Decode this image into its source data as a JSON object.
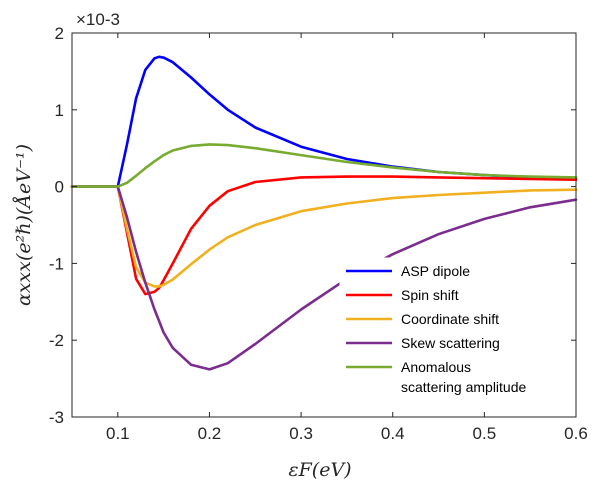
{
  "chart_data": {
    "type": "line",
    "xlabel": "εF(eV)",
    "ylabel": "αxxx(e²ℏ)(ÅeV⁻¹)",
    "y_exponent": "×10-3",
    "xlim": [
      0.05,
      0.6
    ],
    "ylim": [
      -3,
      2
    ],
    "xticks": [
      "0.1",
      "0.2",
      "0.3",
      "0.4",
      "0.5",
      "0.6"
    ],
    "xtick_values": [
      0.1,
      0.2,
      0.3,
      0.4,
      0.5,
      0.6
    ],
    "yticks": [
      "-3",
      "-2",
      "-1",
      "0",
      "1",
      "2"
    ],
    "ytick_values": [
      -3,
      -2,
      -1,
      0,
      1,
      2
    ],
    "grid": false,
    "legend_position": "bottom-right",
    "x": [
      0.05,
      0.1,
      0.11,
      0.12,
      0.13,
      0.14,
      0.145,
      0.15,
      0.16,
      0.18,
      0.2,
      0.22,
      0.25,
      0.3,
      0.35,
      0.4,
      0.45,
      0.5,
      0.55,
      0.6
    ],
    "series": [
      {
        "name": "ASP dipole",
        "color": "#0000ff",
        "values": [
          0,
          0,
          0.55,
          1.15,
          1.52,
          1.67,
          1.69,
          1.68,
          1.62,
          1.42,
          1.2,
          1.0,
          0.77,
          0.52,
          0.36,
          0.26,
          0.19,
          0.15,
          0.12,
          0.1
        ]
      },
      {
        "name": "Spin shift",
        "color": "#ff0000",
        "values": [
          0,
          0,
          -0.6,
          -1.2,
          -1.4,
          -1.37,
          -1.32,
          -1.22,
          -1.0,
          -0.55,
          -0.25,
          -0.06,
          0.06,
          0.12,
          0.13,
          0.13,
          0.12,
          0.11,
          0.1,
          0.09
        ]
      },
      {
        "name": "Coordinate shift",
        "color": "#f0b020",
        "values": [
          0,
          0,
          -0.55,
          -1.05,
          -1.25,
          -1.3,
          -1.3,
          -1.28,
          -1.21,
          -1.01,
          -0.82,
          -0.66,
          -0.5,
          -0.32,
          -0.22,
          -0.15,
          -0.11,
          -0.08,
          -0.05,
          -0.04
        ]
      },
      {
        "name": "Skew scattering",
        "color": "#7b2d8e",
        "values": [
          0,
          0,
          -0.4,
          -0.85,
          -1.25,
          -1.6,
          -1.75,
          -1.9,
          -2.1,
          -2.32,
          -2.38,
          -2.3,
          -2.05,
          -1.6,
          -1.2,
          -0.88,
          -0.62,
          -0.42,
          -0.27,
          -0.17
        ]
      },
      {
        "name": "Anomalous\nscattering amplitude",
        "color": "#77ac30",
        "values": [
          0,
          0,
          0.05,
          0.14,
          0.24,
          0.33,
          0.37,
          0.41,
          0.47,
          0.53,
          0.55,
          0.54,
          0.5,
          0.41,
          0.32,
          0.25,
          0.19,
          0.15,
          0.13,
          0.12
        ]
      }
    ]
  }
}
